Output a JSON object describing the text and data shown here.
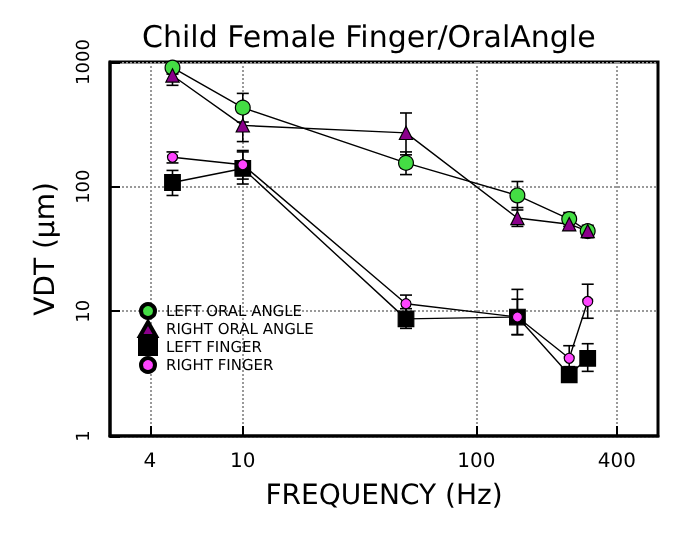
{
  "chart_data": {
    "type": "line",
    "title": "Child Female Finger/OralAngle",
    "xlabel": "FREQUENCY (Hz)",
    "ylabel": "VDT (μm)",
    "x": [
      5,
      10,
      50,
      150,
      250,
      300
    ],
    "series": [
      {
        "name": "LEFT ORAL ANGLE",
        "color": "#44dd44",
        "marker": "circle",
        "values": [
          900,
          430,
          155,
          85,
          55,
          44
        ],
        "errors": [
          [
            800,
            1000
          ],
          [
            330,
            560
          ],
          [
            125,
            190
          ],
          [
            65,
            110
          ],
          [
            48,
            62
          ],
          [
            41,
            49
          ]
        ]
      },
      {
        "name": "RIGHT ORAL ANGLE",
        "color": "#8b008b",
        "marker": "triangle",
        "values": [
          780,
          310,
          270,
          56,
          50,
          44
        ],
        "errors": [
          [
            650,
            900
          ],
          [
            230,
            420
          ],
          [
            180,
            390
          ],
          [
            48,
            68
          ],
          [
            45,
            56
          ],
          [
            39,
            47
          ]
        ]
      },
      {
        "name": "LEFT FINGER",
        "color": "#000000",
        "marker": "square",
        "values": [
          108,
          140,
          8.7,
          9,
          3.1,
          4.2
        ],
        "errors": [
          [
            85,
            135
          ],
          [
            105,
            190
          ],
          [
            7.3,
            10.5
          ],
          [
            6.5,
            12.5
          ],
          [
            2.7,
            3.6
          ],
          [
            3.3,
            5.5
          ]
        ]
      },
      {
        "name": "RIGHT FINGER",
        "color": "#ff44ff",
        "marker": "circle",
        "values": [
          172,
          150,
          11.5,
          9,
          4.2,
          12
        ],
        "errors": [
          [
            155,
            190
          ],
          [
            115,
            195
          ],
          [
            9.5,
            13.5
          ],
          [
            6.5,
            15
          ],
          [
            3.3,
            5.3
          ],
          [
            8.8,
            16.5
          ]
        ]
      }
    ],
    "log": "xy",
    "xlim": [
      2.7,
      600
    ],
    "xticks": [
      4,
      10,
      100,
      400
    ],
    "ylim": [
      1,
      1000
    ],
    "yticks": [
      1,
      10,
      100,
      1000
    ],
    "grid": true,
    "legend": "bottom left",
    "line_style": "solid"
  }
}
